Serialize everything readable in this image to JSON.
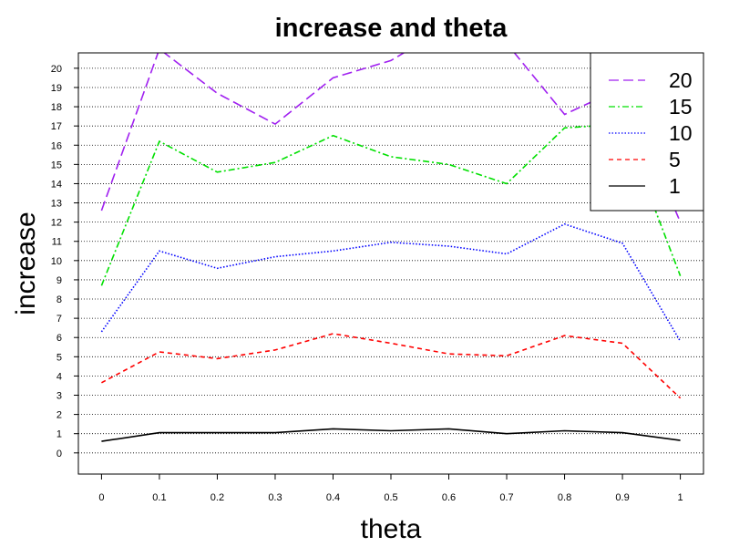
{
  "chart_data": {
    "type": "line",
    "title": "increase and theta",
    "xlabel": "theta",
    "ylabel": "increase",
    "x": [
      0,
      0.1,
      0.2,
      0.3,
      0.4,
      0.5,
      0.6,
      0.7,
      0.8,
      0.9,
      1
    ],
    "x_tick_labels": [
      "0",
      "0.1",
      "0.2",
      "0.3",
      "0.4",
      "0.5",
      "0.6",
      "0.7",
      "0.8",
      "0.9",
      "1"
    ],
    "y_tick_labels": [
      "0",
      "1",
      "2",
      "3",
      "4",
      "5",
      "6",
      "7",
      "8",
      "9",
      "10",
      "11",
      "12",
      "13",
      "14",
      "15",
      "16",
      "17",
      "18",
      "19",
      "20"
    ],
    "xlim": [
      -0.04,
      1.04
    ],
    "ylim": [
      -1.1,
      20.8
    ],
    "grid": "horizontal dotted",
    "legend_position": "top-right",
    "series": [
      {
        "name": "20",
        "color": "#a020f0",
        "dash": "long-dash",
        "values": [
          12.6,
          21.0,
          18.7,
          17.1,
          19.5,
          20.4,
          22.2,
          21.3,
          17.6,
          19.0,
          12.0
        ]
      },
      {
        "name": "15",
        "color": "#00e000",
        "dash": "dot-dash",
        "values": [
          8.7,
          16.2,
          14.6,
          15.1,
          16.5,
          15.4,
          15.0,
          14.0,
          16.9,
          17.1,
          9.2
        ]
      },
      {
        "name": "10",
        "color": "#0000ff",
        "dash": "dotted",
        "values": [
          6.3,
          10.5,
          9.6,
          10.2,
          10.5,
          10.95,
          10.75,
          10.35,
          11.9,
          10.9,
          5.8
        ]
      },
      {
        "name": "5",
        "color": "#ff0000",
        "dash": "dashed",
        "values": [
          3.65,
          5.25,
          4.9,
          5.35,
          6.2,
          5.7,
          5.15,
          5.05,
          6.1,
          5.7,
          2.85
        ]
      },
      {
        "name": "1",
        "color": "#000000",
        "dash": "solid",
        "values": [
          0.6,
          1.05,
          1.05,
          1.05,
          1.25,
          1.15,
          1.25,
          1.0,
          1.15,
          1.05,
          0.65
        ]
      }
    ]
  }
}
